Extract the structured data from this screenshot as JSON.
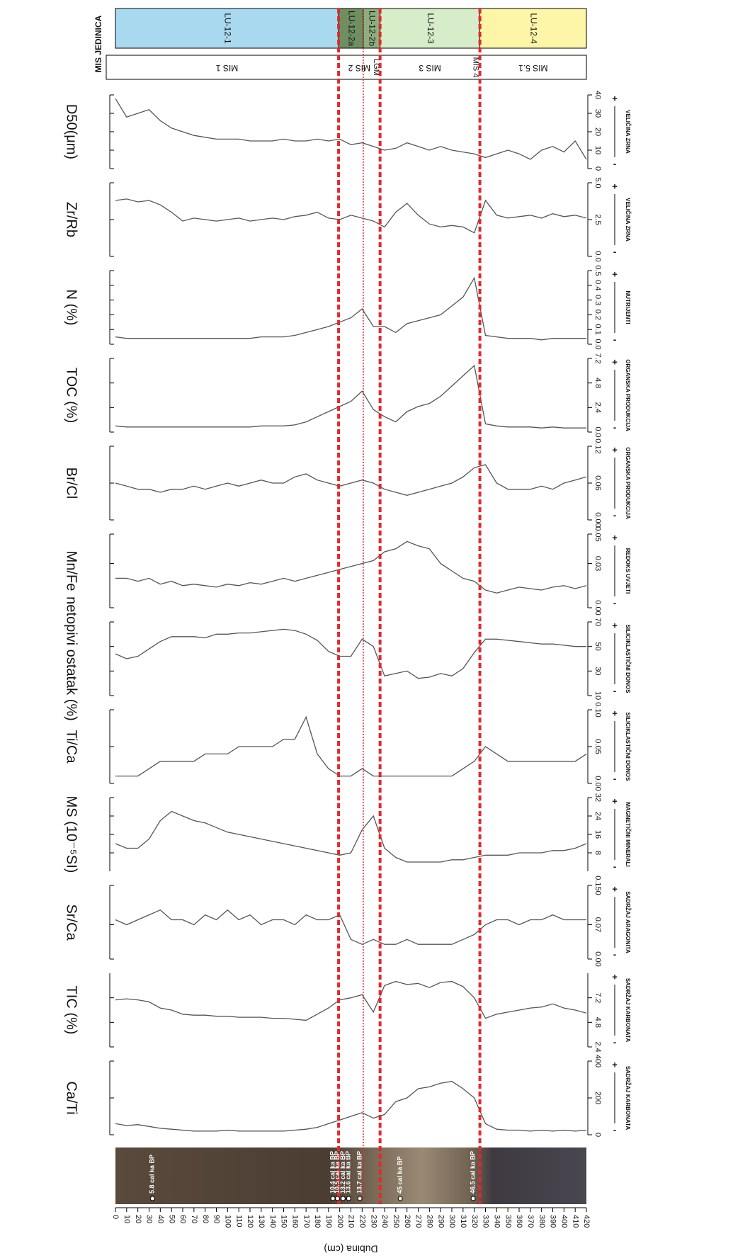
{
  "header": {
    "title": "MIS JEDINICA"
  },
  "lu_units": [
    {
      "label": "LU-12-1",
      "from": 0,
      "to": 199,
      "color": "#a9d9ef"
    },
    {
      "label": "LU-12-2a",
      "from": 199,
      "to": 221,
      "color": "#6f8f62"
    },
    {
      "label": "LU-12-2b",
      "from": 221,
      "to": 236,
      "color": "#8fae80"
    },
    {
      "label": "LU-12-3",
      "from": 236,
      "to": 325,
      "color": "#d7ecc8"
    },
    {
      "label": "LU-12-4",
      "from": 325,
      "to": 420,
      "color": "#fdf6a8"
    }
  ],
  "mis_units": [
    {
      "label": "MIS 1",
      "from": 0,
      "to": 199
    },
    {
      "label": "MIS 2",
      "from": 199,
      "to": 236
    },
    {
      "label": "MIS 3",
      "from": 236,
      "to": 325
    },
    {
      "label": "MIS 5.1",
      "from": 325,
      "to": 420
    }
  ],
  "mis_markers": [
    {
      "label": "LGM",
      "depth": 236
    },
    {
      "label": "MIS 4",
      "depth": 325
    }
  ],
  "boundaries": [
    {
      "depth": 199,
      "style": "dashed"
    },
    {
      "depth": 221,
      "style": "dotted"
    },
    {
      "depth": 236,
      "style": "dashed"
    },
    {
      "depth": 325,
      "style": "dashed"
    }
  ],
  "core_dates": [
    {
      "label": "5.8 cal ka BP",
      "depth": 33
    },
    {
      "label": "10.4 cal ka BP",
      "depth": 194
    },
    {
      "label": "10.5 cal ka BP",
      "depth": 198
    },
    {
      "label": "13.2 cal ka BP",
      "depth": 203
    },
    {
      "label": "13.6 cal ka BP",
      "depth": 208
    },
    {
      "label": "13.7 cal ka BP",
      "depth": 218
    },
    {
      "label": "45 cal ka BP",
      "depth": 254
    },
    {
      "label": "46.5 cal ka BP",
      "depth": 319
    }
  ],
  "direction_labels": {
    "high": "+",
    "low": "-"
  },
  "depth_axis": {
    "label": "Dubina (cm)",
    "xlim": [
      0,
      420
    ],
    "xticks": [
      0,
      10,
      20,
      30,
      40,
      50,
      60,
      70,
      80,
      90,
      100,
      110,
      120,
      130,
      140,
      150,
      160,
      170,
      180,
      190,
      200,
      210,
      220,
      230,
      240,
      250,
      260,
      270,
      280,
      290,
      300,
      310,
      320,
      330,
      340,
      350,
      360,
      370,
      380,
      390,
      400,
      410,
      420
    ],
    "x": [
      0,
      10,
      20,
      30,
      40,
      50,
      60,
      70,
      80,
      90,
      100,
      110,
      120,
      130,
      140,
      150,
      160,
      170,
      180,
      190,
      200,
      210,
      220,
      230,
      240,
      250,
      260,
      270,
      280,
      290,
      300,
      310,
      320,
      330,
      340,
      350,
      360,
      370,
      380,
      390,
      400,
      410,
      420
    ]
  },
  "chart_data": [
    {
      "type": "line",
      "y_label": "Ca/Ti",
      "group_label": "SADRŽAJ KARBONATA",
      "color": "#555555",
      "ylim": [
        0,
        400
      ],
      "yticks": [
        0,
        200,
        400
      ],
      "values": [
        60,
        50,
        55,
        45,
        35,
        30,
        25,
        20,
        20,
        20,
        25,
        20,
        20,
        20,
        20,
        20,
        25,
        30,
        40,
        60,
        80,
        100,
        120,
        90,
        110,
        180,
        200,
        250,
        260,
        280,
        290,
        250,
        200,
        60,
        30,
        25,
        25,
        20,
        25,
        20,
        25,
        20,
        25
      ]
    },
    {
      "type": "line",
      "y_label": "TIC (%)",
      "group_label": "SADRŽAJ KARBONATA",
      "color": "#555555",
      "ylim": [
        2.4,
        9.6
      ],
      "yticks": [
        2.4,
        4.8,
        7.2
      ],
      "values": [
        7.0,
        7.1,
        7.0,
        6.8,
        6.2,
        6.0,
        5.6,
        5.5,
        5.5,
        5.4,
        5.4,
        5.3,
        5.3,
        5.3,
        5.2,
        5.2,
        5.1,
        5.0,
        5.6,
        6.2,
        7.0,
        7.2,
        7.5,
        5.8,
        8.4,
        8.8,
        8.5,
        8.6,
        8.2,
        8.7,
        8.8,
        8.3,
        7.2,
        5.2,
        5.6,
        5.8,
        6.0,
        6.2,
        6.3,
        6.6,
        6.2,
        6.0,
        5.7
      ]
    },
    {
      "type": "line",
      "y_label": "Sr/Ca",
      "group_label": "SADRŽAJ ARAGONITA",
      "color": "#555555",
      "ylim": [
        0,
        0.15
      ],
      "yticks": [
        {
          "value": 0,
          "label": "0.00"
        },
        0.07,
        {
          "value": 0.15,
          "label": "0.150"
        }
      ],
      "values": [
        0.08,
        0.07,
        0.08,
        0.09,
        0.1,
        0.08,
        0.08,
        0.07,
        0.09,
        0.08,
        0.1,
        0.08,
        0.09,
        0.07,
        0.08,
        0.08,
        0.07,
        0.09,
        0.08,
        0.08,
        0.09,
        0.04,
        0.03,
        0.04,
        0.03,
        0.03,
        0.04,
        0.03,
        0.03,
        0.03,
        0.03,
        0.04,
        0.05,
        0.07,
        0.08,
        0.08,
        0.07,
        0.08,
        0.08,
        0.09,
        0.08,
        0.08,
        0.08
      ]
    },
    {
      "type": "line",
      "y_label": "MS (10⁻⁵SI)",
      "group_label": "MAGNETIČNI MINERALI",
      "color": "#555555",
      "ylim": [
        0,
        32
      ],
      "yticks": [
        8,
        16,
        24,
        32
      ],
      "values": [
        12,
        10,
        10,
        14,
        22,
        26,
        24,
        22,
        21,
        19,
        17,
        16,
        15,
        14,
        13,
        12,
        11,
        10,
        9,
        8,
        7,
        8,
        18,
        24,
        10,
        6,
        4,
        4,
        4,
        4,
        5,
        5,
        6,
        7,
        7,
        7,
        8,
        8,
        8,
        9,
        9,
        10,
        12
      ]
    },
    {
      "type": "line",
      "y_label": "Ti/Ca",
      "group_label": "SILICIKLASTIČNI DONOS",
      "color": "#555555",
      "ylim": [
        0,
        0.1
      ],
      "yticks": [
        {
          "value": 0,
          "label": "0.00"
        },
        0.05,
        {
          "value": 0.1,
          "label": "0.10"
        }
      ],
      "values": [
        0.01,
        0.01,
        0.01,
        0.02,
        0.03,
        0.03,
        0.03,
        0.03,
        0.04,
        0.04,
        0.04,
        0.05,
        0.05,
        0.05,
        0.05,
        0.06,
        0.06,
        0.09,
        0.04,
        0.02,
        0.01,
        0.01,
        0.02,
        0.01,
        0.01,
        0.01,
        0.01,
        0.01,
        0.01,
        0.01,
        0.01,
        0.02,
        0.03,
        0.05,
        0.04,
        0.03,
        0.03,
        0.03,
        0.03,
        0.03,
        0.03,
        0.03,
        0.04
      ]
    },
    {
      "type": "line",
      "y_label": "netopivi ostatak (%)",
      "group_label": "SILICIKLASTIČNI DONOS",
      "color": "#555555",
      "ylim": [
        10,
        70
      ],
      "yticks": [
        10,
        30,
        50,
        70
      ],
      "values": [
        44,
        40,
        42,
        48,
        54,
        58,
        58,
        58,
        57,
        60,
        60,
        61,
        61,
        62,
        63,
        64,
        63,
        60,
        55,
        46,
        42,
        42,
        56,
        50,
        26,
        28,
        30,
        24,
        25,
        28,
        26,
        32,
        45,
        56,
        56,
        55,
        54,
        53,
        52,
        52,
        51,
        50,
        50
      ]
    },
    {
      "type": "line",
      "y_label": "Mn/Fe",
      "group_label": "REDOKS UVJETI",
      "color": "#555555",
      "ylim": [
        0,
        0.05
      ],
      "yticks": [
        {
          "value": 0,
          "label": "0.00"
        },
        0.03,
        0.05
      ],
      "values": [
        0.02,
        0.02,
        0.018,
        0.02,
        0.016,
        0.018,
        0.015,
        0.016,
        0.015,
        0.014,
        0.016,
        0.015,
        0.017,
        0.016,
        0.018,
        0.02,
        0.018,
        0.02,
        0.022,
        0.024,
        0.026,
        0.028,
        0.03,
        0.032,
        0.038,
        0.04,
        0.045,
        0.042,
        0.04,
        0.03,
        0.025,
        0.02,
        0.018,
        0.012,
        0.01,
        0.012,
        0.014,
        0.013,
        0.012,
        0.014,
        0.015,
        0.013,
        0.015
      ]
    },
    {
      "type": "line",
      "y_label": "Br/Cl",
      "group_label": "ORGANSKA PRODUKCIJA",
      "color": "#555555",
      "ylim": [
        0,
        0.12
      ],
      "yticks": [
        {
          "value": 0,
          "label": "0.00"
        },
        0.06,
        0.12
      ],
      "values": [
        0.06,
        0.055,
        0.05,
        0.05,
        0.045,
        0.05,
        0.05,
        0.055,
        0.05,
        0.055,
        0.06,
        0.055,
        0.06,
        0.065,
        0.06,
        0.06,
        0.07,
        0.075,
        0.065,
        0.06,
        0.055,
        0.06,
        0.065,
        0.06,
        0.05,
        0.045,
        0.04,
        0.045,
        0.05,
        0.055,
        0.06,
        0.07,
        0.085,
        0.09,
        0.06,
        0.05,
        0.05,
        0.05,
        0.055,
        0.05,
        0.06,
        0.065,
        0.07
      ]
    },
    {
      "type": "line",
      "y_label": "TOC (%)",
      "group_label": "ORGANSKA PRODUKCIJA",
      "color": "#555555",
      "ylim": [
        0,
        7.2
      ],
      "yticks": [
        {
          "value": 0,
          "label": "0.0"
        },
        2.4,
        4.8,
        7.2
      ],
      "values": [
        0.6,
        0.5,
        0.5,
        0.5,
        0.5,
        0.5,
        0.5,
        0.5,
        0.5,
        0.5,
        0.5,
        0.5,
        0.5,
        0.6,
        0.6,
        0.6,
        0.7,
        1.0,
        1.5,
        2.0,
        2.5,
        3.0,
        4.0,
        2.2,
        1.5,
        1.0,
        2.0,
        2.5,
        2.8,
        3.5,
        4.5,
        5.5,
        6.5,
        0.8,
        0.6,
        0.5,
        0.5,
        0.5,
        0.4,
        0.5,
        0.4,
        0.4,
        0.4
      ]
    },
    {
      "type": "line",
      "y_label": "N (%)",
      "group_label": "NUTRIJENTI",
      "color": "#555555",
      "ylim": [
        0,
        0.5
      ],
      "yticks": [
        {
          "value": 0,
          "label": "0.0"
        },
        0.1,
        0.2,
        0.3,
        0.4,
        0.5
      ],
      "values": [
        0.05,
        0.04,
        0.04,
        0.04,
        0.04,
        0.04,
        0.04,
        0.04,
        0.04,
        0.04,
        0.04,
        0.04,
        0.04,
        0.05,
        0.05,
        0.05,
        0.06,
        0.08,
        0.1,
        0.12,
        0.15,
        0.18,
        0.24,
        0.12,
        0.12,
        0.08,
        0.14,
        0.16,
        0.18,
        0.2,
        0.26,
        0.32,
        0.45,
        0.06,
        0.05,
        0.04,
        0.04,
        0.04,
        0.03,
        0.04,
        0.04,
        0.04,
        0.04
      ]
    },
    {
      "type": "line",
      "y_label": "Zr/Rb",
      "group_label": "VELIČINA ZRNA",
      "color": "#555555",
      "ylim": [
        0,
        5
      ],
      "yticks": [
        {
          "value": 0,
          "label": "0.0"
        },
        2.5,
        {
          "value": 5,
          "label": "5.0"
        }
      ],
      "values": [
        3.8,
        3.9,
        3.7,
        3.8,
        3.5,
        3.0,
        2.4,
        2.6,
        2.5,
        2.4,
        2.5,
        2.6,
        2.4,
        2.5,
        2.6,
        2.5,
        2.7,
        2.8,
        3.0,
        2.6,
        2.5,
        2.8,
        2.6,
        2.4,
        2.0,
        3.0,
        3.6,
        2.8,
        2.2,
        2.0,
        2.1,
        2.0,
        1.6,
        3.8,
        2.8,
        2.6,
        2.7,
        2.8,
        2.6,
        2.9,
        2.7,
        2.8,
        2.6
      ]
    },
    {
      "type": "line",
      "y_label": "D50(μm)",
      "group_label": "VELIČINA ZRNA",
      "color": "#555555",
      "ylim": [
        0,
        40
      ],
      "yticks": [
        0,
        10,
        20,
        30,
        40
      ],
      "values": [
        38,
        28,
        30,
        32,
        26,
        22,
        20,
        18,
        17,
        16,
        16,
        16,
        15,
        15,
        15,
        16,
        15,
        15,
        16,
        15,
        16,
        13,
        14,
        12,
        10,
        11,
        14,
        12,
        10,
        12,
        10,
        9,
        8,
        6,
        8,
        10,
        8,
        5,
        10,
        12,
        9,
        15,
        5
      ]
    }
  ]
}
